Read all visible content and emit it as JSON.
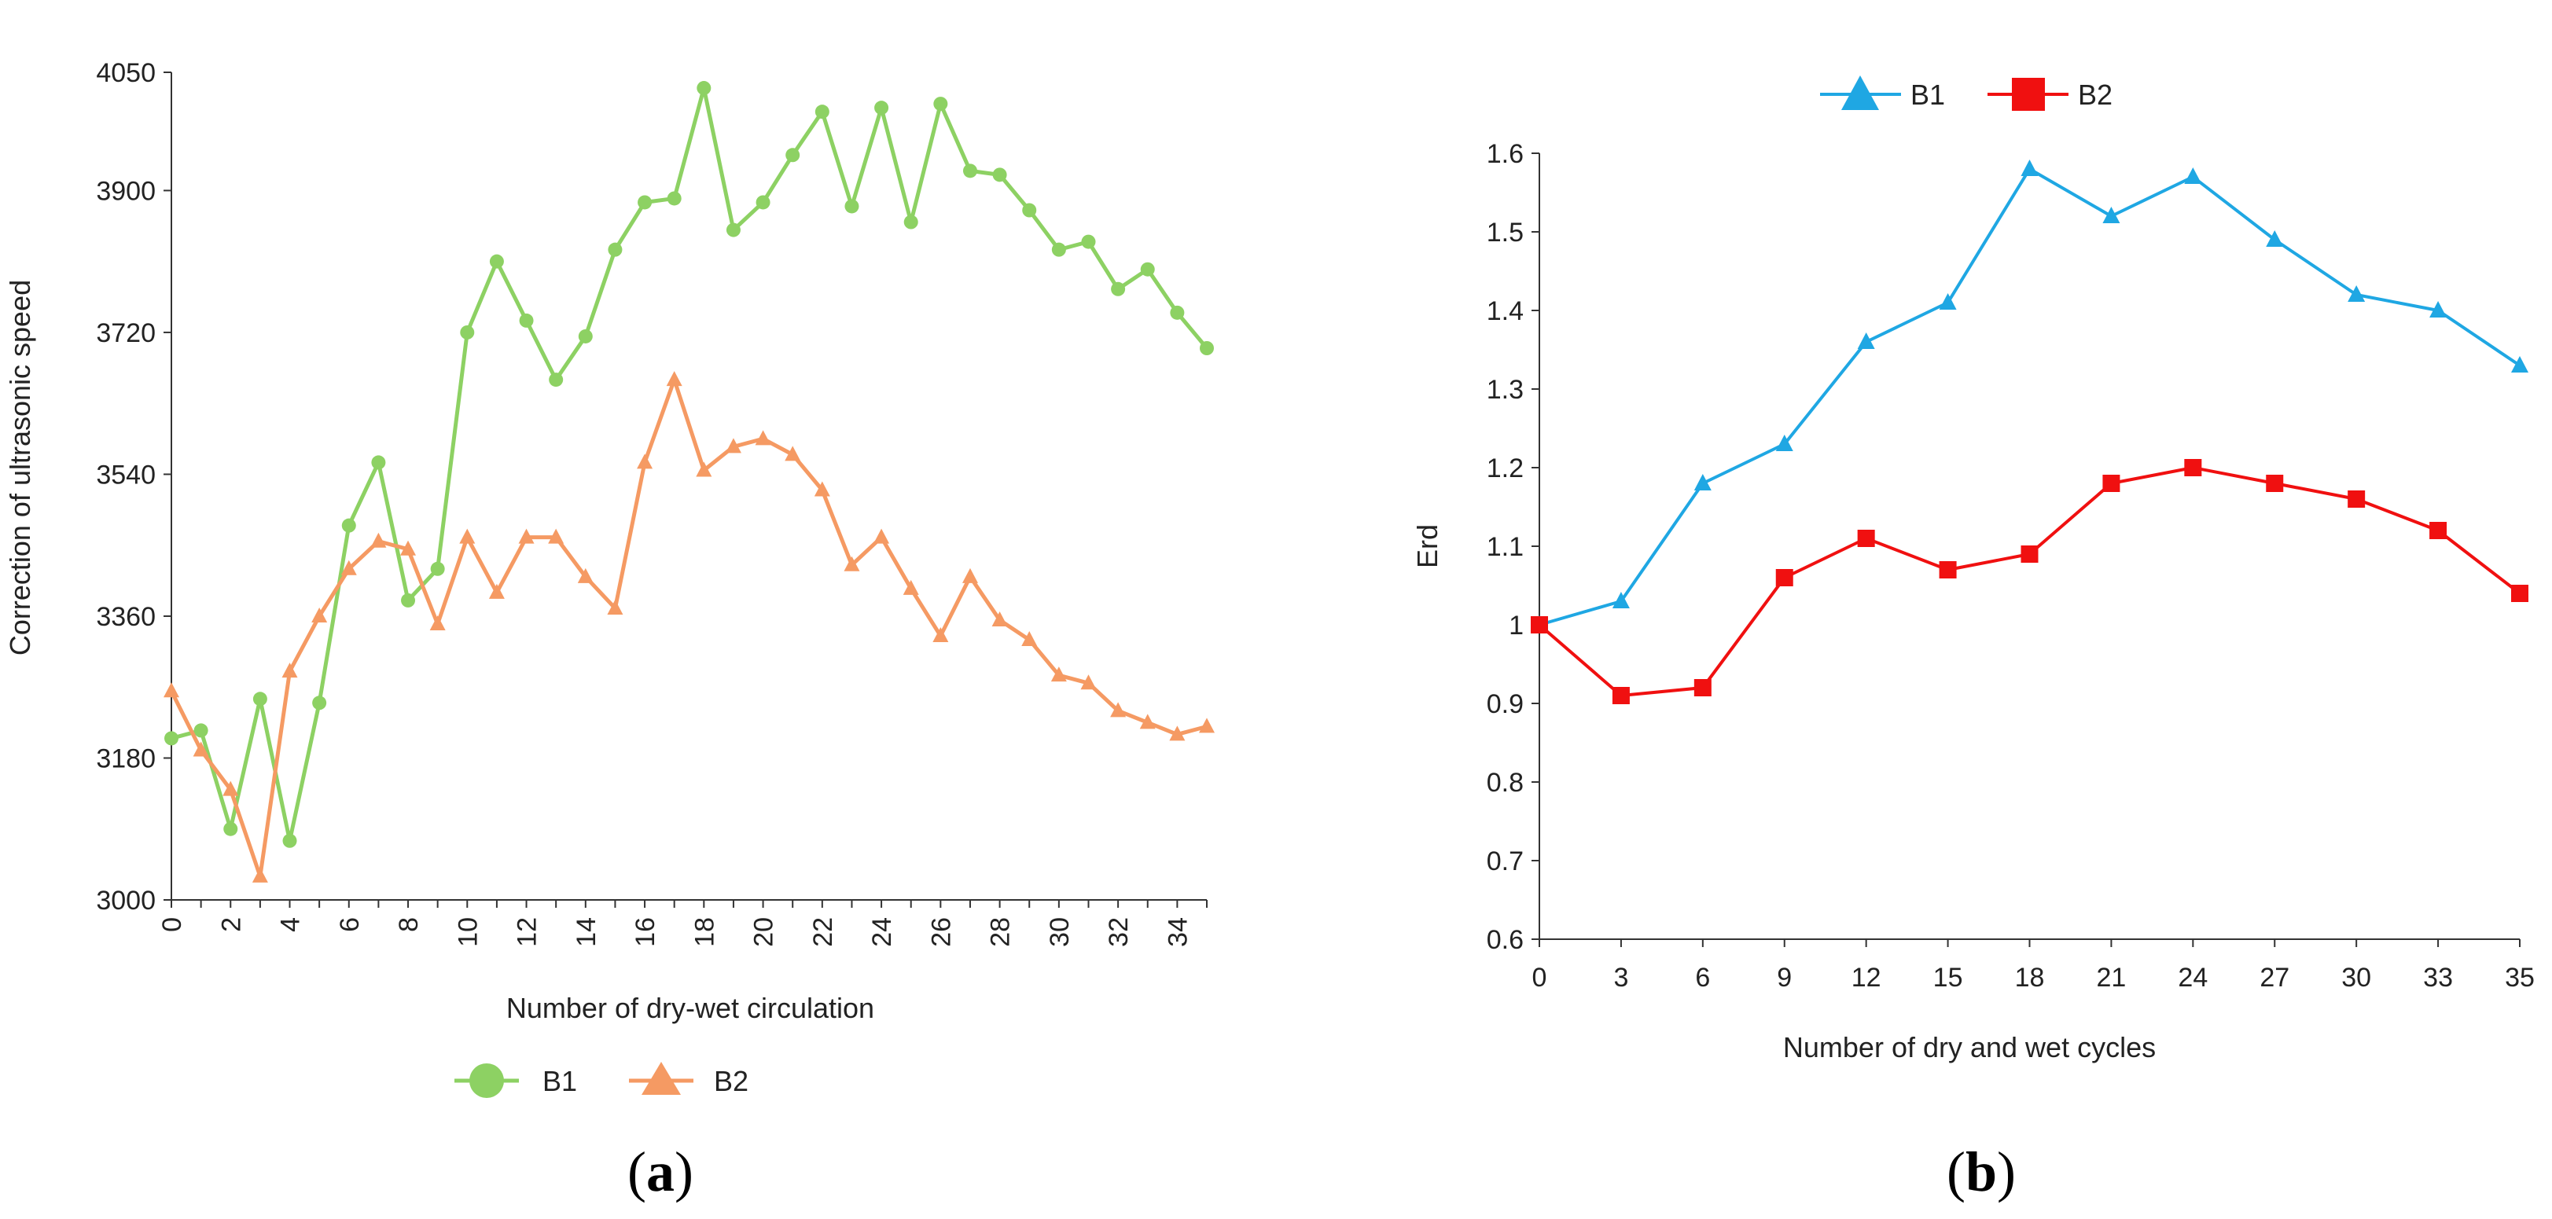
{
  "colors": {
    "b1_a": "#8dd163",
    "b2_a": "#f59a63",
    "b1_b": "#1fa7e3",
    "b2_b": "#f01010",
    "axis": "#333333"
  },
  "chart_data": [
    {
      "panel": "a",
      "type": "line",
      "title": "",
      "xlabel": "Number of dry-wet circulation",
      "ylabel": "Correction of ultrasonic speed",
      "xlim": [
        0,
        35
      ],
      "ylim": [
        3000,
        4050
      ],
      "x_ticks": [
        0,
        2,
        4,
        6,
        8,
        10,
        12,
        14,
        16,
        18,
        20,
        22,
        24,
        26,
        28,
        30,
        32,
        34
      ],
      "y_ticks": [
        3000,
        3180,
        3360,
        3540,
        3720,
        3900,
        4050
      ],
      "legend_position": "bottom",
      "x": [
        0,
        1,
        2,
        3,
        4,
        5,
        6,
        7,
        8,
        9,
        10,
        11,
        12,
        13,
        14,
        15,
        16,
        17,
        18,
        19,
        20,
        21,
        22,
        23,
        24,
        25,
        26,
        27,
        28,
        29,
        30,
        31,
        32,
        33,
        34,
        35
      ],
      "series": [
        {
          "name": "B1",
          "marker": "circle",
          "values": [
            3205,
            3215,
            3090,
            3255,
            3075,
            3250,
            3475,
            3555,
            3380,
            3420,
            3720,
            3810,
            3735,
            3660,
            3715,
            3825,
            3885,
            3890,
            4030,
            3850,
            3885,
            3945,
            4000,
            3880,
            4005,
            3860,
            4010,
            3925,
            3920,
            3875,
            3825,
            3835,
            3775,
            3800,
            3745,
            3700
          ]
        },
        {
          "name": "B2",
          "marker": "triangle",
          "values": [
            3265,
            3190,
            3140,
            3030,
            3290,
            3360,
            3420,
            3455,
            3445,
            3350,
            3460,
            3390,
            3460,
            3460,
            3410,
            3370,
            3555,
            3660,
            3545,
            3575,
            3585,
            3565,
            3520,
            3425,
            3460,
            3395,
            3335,
            3410,
            3355,
            3330,
            3285,
            3275,
            3240,
            3225,
            3210,
            3220
          ]
        }
      ]
    },
    {
      "panel": "b",
      "type": "line",
      "title": "",
      "xlabel": "Number of dry and wet cycles",
      "ylabel": "Erd",
      "ylim": [
        0.6,
        1.6
      ],
      "x_ticks": [
        0,
        3,
        6,
        9,
        12,
        15,
        18,
        21,
        24,
        27,
        30,
        33,
        35
      ],
      "y_ticks": [
        "0.6",
        "0.7",
        "0.8",
        "0.9",
        "1",
        "1.1",
        "1.2",
        "1.3",
        "1.4",
        "1.5",
        "1.6"
      ],
      "legend_position": "top",
      "categories": [
        0,
        3,
        6,
        9,
        12,
        15,
        18,
        21,
        24,
        27,
        30,
        33,
        35
      ],
      "series": [
        {
          "name": "B1",
          "marker": "triangle",
          "values": [
            1.0,
            1.03,
            1.18,
            1.23,
            1.36,
            1.41,
            1.58,
            1.52,
            1.57,
            1.49,
            1.42,
            1.4,
            1.33
          ]
        },
        {
          "name": "B2",
          "marker": "square",
          "values": [
            1.0,
            0.91,
            0.92,
            1.06,
            1.11,
            1.07,
            1.09,
            1.18,
            1.2,
            1.18,
            1.16,
            1.12,
            1.04
          ]
        }
      ]
    }
  ],
  "legend_a": {
    "b1": "B1",
    "b2": "B2"
  },
  "legend_b": {
    "b1": "B1",
    "b2": "B2"
  },
  "panel_labels": {
    "a": "a",
    "b": "b"
  }
}
